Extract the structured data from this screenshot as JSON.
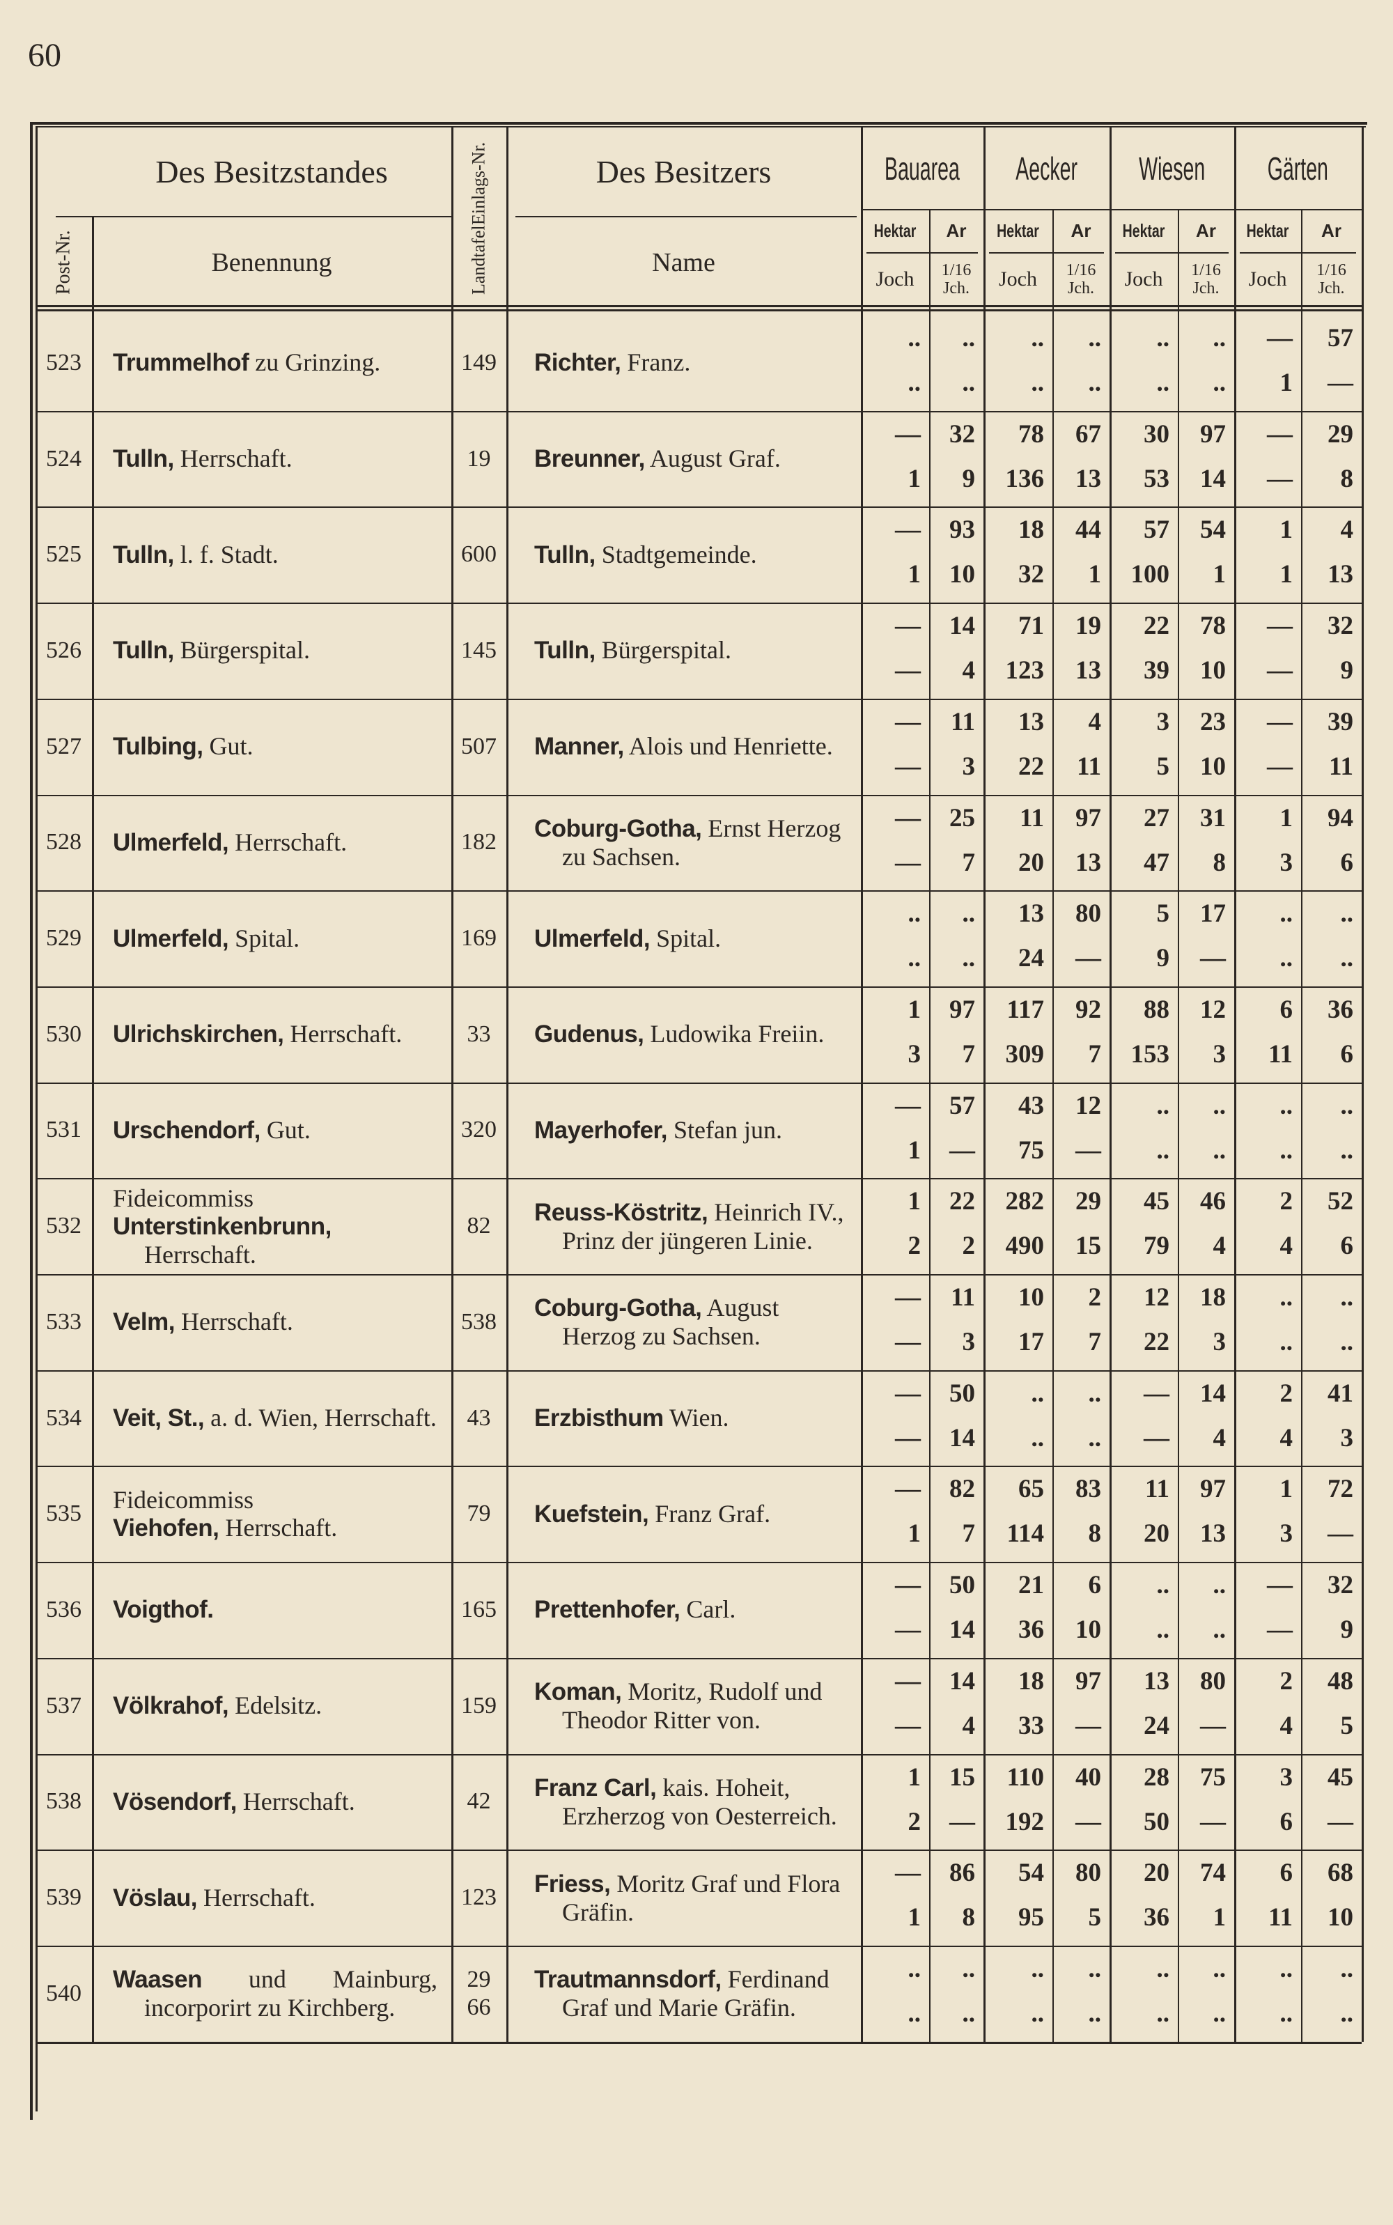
{
  "page_number": "60",
  "header": {
    "owned": "Des Besitzstandes",
    "post": "Post-Nr.",
    "designation": "Benennung",
    "land_register": [
      "Landtafel",
      "Einlags-Nr."
    ],
    "owner": "Des Besitzers",
    "owner_name": "Name",
    "groups": [
      {
        "title": "Bauarea",
        "units": [
          "Hektar",
          "Ar",
          "Joch",
          "1/16 Jch."
        ]
      },
      {
        "title": "Aecker",
        "units": [
          "Hektar",
          "Ar",
          "Joch",
          "1/16 Jch."
        ]
      },
      {
        "title": "Wiesen",
        "units": [
          "Hektar",
          "Ar",
          "Joch",
          "1/16 Jch."
        ]
      },
      {
        "title": "Gärten",
        "units": [
          "Hektar",
          "Ar",
          "Joch",
          "1/16 Jch."
        ]
      }
    ]
  },
  "rows": [
    {
      "post": "523",
      "name_bold": "Trummelhof",
      "name_rest": "zu Grinzing.",
      "entry": [
        "149"
      ],
      "owner_bold": "Richter,",
      "owner_rest": "Franz.",
      "top": [
        "..",
        "..",
        "..",
        "..",
        "..",
        "..",
        "—",
        "57"
      ],
      "bottom": [
        "..",
        "..",
        "..",
        "..",
        "..",
        "..",
        "1",
        "—"
      ]
    },
    {
      "post": "524",
      "name_bold": "Tulln,",
      "name_rest": "Herrschaft.",
      "entry": [
        "19"
      ],
      "owner_bold": "Breunner,",
      "owner_rest": "August Graf.",
      "top": [
        "—",
        "32",
        "78",
        "67",
        "30",
        "97",
        "—",
        "29"
      ],
      "bottom": [
        "1",
        "9",
        "136",
        "13",
        "53",
        "14",
        "—",
        "8"
      ]
    },
    {
      "post": "525",
      "name_bold": "Tulln,",
      "name_rest": "l. f. Stadt.",
      "entry": [
        "600"
      ],
      "owner_bold": "Tulln,",
      "owner_rest": "Stadtgemeinde.",
      "top": [
        "—",
        "93",
        "18",
        "44",
        "57",
        "54",
        "1",
        "4"
      ],
      "bottom": [
        "1",
        "10",
        "32",
        "1",
        "100",
        "1",
        "1",
        "13"
      ]
    },
    {
      "post": "526",
      "name_bold": "Tulln,",
      "name_rest": "Bürgerspital.",
      "entry": [
        "145"
      ],
      "owner_bold": "Tulln,",
      "owner_rest": "Bürgerspital.",
      "top": [
        "—",
        "14",
        "71",
        "19",
        "22",
        "78",
        "—",
        "32"
      ],
      "bottom": [
        "—",
        "4",
        "123",
        "13",
        "39",
        "10",
        "—",
        "9"
      ]
    },
    {
      "post": "527",
      "name_bold": "Tulbing,",
      "name_rest": "Gut.",
      "entry": [
        "507"
      ],
      "owner_bold": "Manner,",
      "owner_rest": "Alois und Henriette.",
      "top": [
        "—",
        "11",
        "13",
        "4",
        "3",
        "23",
        "—",
        "39"
      ],
      "bottom": [
        "—",
        "3",
        "22",
        "11",
        "5",
        "10",
        "—",
        "11"
      ]
    },
    {
      "post": "528",
      "name_bold": "Ulmerfeld,",
      "name_rest": "Herrschaft.",
      "entry": [
        "182"
      ],
      "owner_bold": "Coburg-Gotha,",
      "owner_rest": "Ernst Herzog zu Sachsen.",
      "top": [
        "—",
        "25",
        "11",
        "97",
        "27",
        "31",
        "1",
        "94"
      ],
      "bottom": [
        "—",
        "7",
        "20",
        "13",
        "47",
        "8",
        "3",
        "6"
      ]
    },
    {
      "post": "529",
      "name_bold": "Ulmerfeld,",
      "name_rest": "Spital.",
      "entry": [
        "169"
      ],
      "owner_bold": "Ulmerfeld,",
      "owner_rest": "Spital.",
      "top": [
        "..",
        "..",
        "13",
        "80",
        "5",
        "17",
        "..",
        ".."
      ],
      "bottom": [
        "..",
        "..",
        "24",
        "—",
        "9",
        "—",
        "..",
        ".."
      ]
    },
    {
      "post": "530",
      "name_bold": "Ulrichskirchen,",
      "name_rest": "Herrschaft.",
      "entry": [
        "33"
      ],
      "owner_bold": "Gudenus,",
      "owner_rest": "Ludowika Freiin.",
      "top": [
        "1",
        "97",
        "117",
        "92",
        "88",
        "12",
        "6",
        "36"
      ],
      "bottom": [
        "3",
        "7",
        "309",
        "7",
        "153",
        "3",
        "11",
        "6"
      ]
    },
    {
      "post": "531",
      "name_bold": "Urschendorf,",
      "name_rest": "Gut.",
      "entry": [
        "320"
      ],
      "owner_bold": "Mayerhofer,",
      "owner_rest": "Stefan jun.",
      "top": [
        "—",
        "57",
        "43",
        "12",
        "..",
        "..",
        "..",
        ".."
      ],
      "bottom": [
        "1",
        "—",
        "75",
        "—",
        "..",
        "..",
        "..",
        ".."
      ]
    },
    {
      "post": "532",
      "name_prefix": "Fideicommiss",
      "name_bold": "Unterstinkenbrunn,",
      "name_rest": "Herrschaft.",
      "entry": [
        "82"
      ],
      "owner_bold": "Reuss-Köstritz,",
      "owner_rest": "Heinrich IV., Prinz der jüngeren Linie.",
      "top": [
        "1",
        "22",
        "282",
        "29",
        "45",
        "46",
        "2",
        "52"
      ],
      "bottom": [
        "2",
        "2",
        "490",
        "15",
        "79",
        "4",
        "4",
        "6"
      ]
    },
    {
      "post": "533",
      "name_bold": "Velm,",
      "name_rest": "Herrschaft.",
      "entry": [
        "538"
      ],
      "owner_bold": "Coburg-Gotha,",
      "owner_rest": "August Herzog zu Sachsen.",
      "top": [
        "—",
        "11",
        "10",
        "2",
        "12",
        "18",
        "..",
        ".."
      ],
      "bottom": [
        "—",
        "3",
        "17",
        "7",
        "22",
        "3",
        "..",
        ".."
      ]
    },
    {
      "post": "534",
      "name_bold": "Veit, St.,",
      "name_rest": "a. d. Wien, Herrschaft.",
      "entry": [
        "43"
      ],
      "owner_bold": "Erzbisthum",
      "owner_rest": "Wien.",
      "top": [
        "—",
        "50",
        "..",
        "..",
        "—",
        "14",
        "2",
        "41"
      ],
      "bottom": [
        "—",
        "14",
        "..",
        "..",
        "—",
        "4",
        "4",
        "3"
      ]
    },
    {
      "post": "535",
      "name_prefix": "Fideicommiss",
      "name_bold": "Viehofen,",
      "name_rest": "Herrschaft.",
      "entry": [
        "79"
      ],
      "owner_bold": "Kuefstein,",
      "owner_rest": "Franz Graf.",
      "top": [
        "—",
        "82",
        "65",
        "83",
        "11",
        "97",
        "1",
        "72"
      ],
      "bottom": [
        "1",
        "7",
        "114",
        "8",
        "20",
        "13",
        "3",
        "—"
      ]
    },
    {
      "post": "536",
      "name_bold": "Voigthof.",
      "entry": [
        "165"
      ],
      "owner_bold": "Prettenhofer,",
      "owner_rest": "Carl.",
      "top": [
        "—",
        "50",
        "21",
        "6",
        "..",
        "..",
        "—",
        "32"
      ],
      "bottom": [
        "—",
        "14",
        "36",
        "10",
        "..",
        "..",
        "—",
        "9"
      ]
    },
    {
      "post": "537",
      "name_bold": "Völkrahof,",
      "name_rest": "Edelsitz.",
      "entry": [
        "159"
      ],
      "owner_bold": "Koman,",
      "owner_rest": "Moritz, Rudolf und Theodor Ritter von.",
      "top": [
        "—",
        "14",
        "18",
        "97",
        "13",
        "80",
        "2",
        "48"
      ],
      "bottom": [
        "—",
        "4",
        "33",
        "—",
        "24",
        "—",
        "4",
        "5"
      ]
    },
    {
      "post": "538",
      "name_bold": "Vösendorf,",
      "name_rest": "Herrschaft.",
      "entry": [
        "42"
      ],
      "owner_bold": "Franz Carl,",
      "owner_rest": "kais. Hoheit, Erzherzog von Oesterreich.",
      "top": [
        "1",
        "15",
        "110",
        "40",
        "28",
        "75",
        "3",
        "45"
      ],
      "bottom": [
        "2",
        "—",
        "192",
        "—",
        "50",
        "—",
        "6",
        "—"
      ]
    },
    {
      "post": "539",
      "name_bold": "Vöslau,",
      "name_rest": "Herrschaft.",
      "entry": [
        "123"
      ],
      "owner_bold": "Friess,",
      "owner_rest": "Moritz Graf und Flora Gräfin.",
      "top": [
        "—",
        "86",
        "54",
        "80",
        "20",
        "74",
        "6",
        "68"
      ],
      "bottom": [
        "1",
        "8",
        "95",
        "5",
        "36",
        "1",
        "11",
        "10"
      ]
    },
    {
      "post": "540",
      "name_bold": "Waasen",
      "name_rest": "und Mainburg, incorporirt zu Kirchberg.",
      "entry": [
        "29",
        "66"
      ],
      "owner_bold": "Trautmannsdorf,",
      "owner_rest": "Ferdinand Graf und Marie Gräfin.",
      "top": [
        "..",
        "..",
        "..",
        "..",
        "..",
        "..",
        "..",
        ".."
      ],
      "bottom": [
        "..",
        "..",
        "..",
        "..",
        "..",
        "..",
        "..",
        ".."
      ]
    }
  ]
}
